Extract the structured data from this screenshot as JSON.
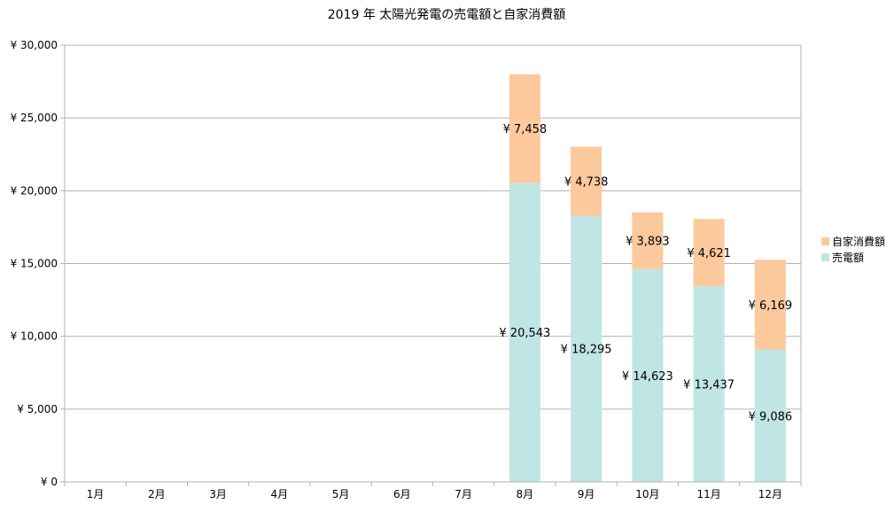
{
  "chart_data": {
    "type": "bar",
    "stacked": true,
    "title": "2019 年 太陽光発電の売電額と自家消費額",
    "categories": [
      "1月",
      "2月",
      "3月",
      "4月",
      "5月",
      "6月",
      "7月",
      "8月",
      "9月",
      "10月",
      "11月",
      "12月"
    ],
    "series": [
      {
        "name": "売電額",
        "color": "#bfe5e5",
        "values": [
          null,
          null,
          null,
          null,
          null,
          null,
          null,
          20543,
          18295,
          14623,
          13437,
          9086
        ],
        "labels": [
          "",
          "",
          "",
          "",
          "",
          "",
          "",
          "¥ 20,543",
          "¥ 18,295",
          "¥ 14,623",
          "¥ 13,437",
          "¥ 9,086"
        ]
      },
      {
        "name": "自家消費額",
        "color": "#fbc99c",
        "values": [
          null,
          null,
          null,
          null,
          null,
          null,
          null,
          7458,
          4738,
          3893,
          4621,
          6169
        ],
        "labels": [
          "",
          "",
          "",
          "",
          "",
          "",
          "",
          "¥ 7,458",
          "¥ 4,738",
          "¥ 3,893",
          "¥ 4,621",
          "¥ 6,169"
        ]
      }
    ],
    "ylim": [
      0,
      30000
    ],
    "yticks": [
      0,
      5000,
      10000,
      15000,
      20000,
      25000,
      30000
    ],
    "ytick_labels": [
      "¥ 0",
      "¥ 5,000",
      "¥ 10,000",
      "¥ 15,000",
      "¥ 20,000",
      "¥ 25,000",
      "¥ 30,000"
    ],
    "grid": true,
    "legend_position": "right",
    "legend_order": [
      "自家消費額",
      "売電額"
    ],
    "xlabel": "",
    "ylabel": ""
  }
}
